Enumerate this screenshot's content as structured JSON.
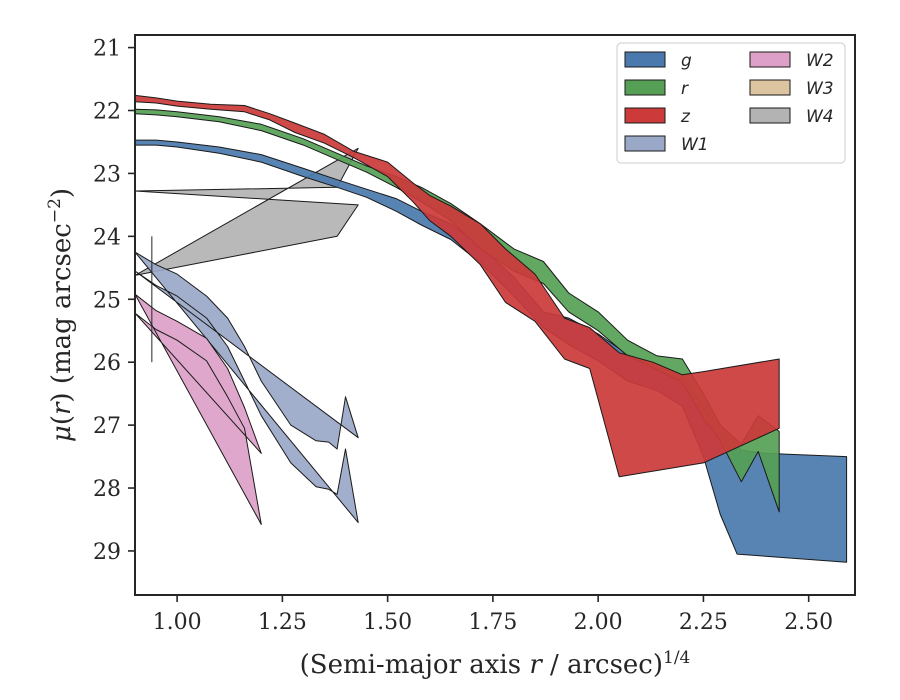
{
  "chart_data": {
    "type": "area",
    "xlabel_html": "(Semi-major axis <tspan font-style='italic'>r</tspan> / arcsec)<tspan dy='-10' font-size='17'>1/4</tspan>",
    "ylabel_html": "<tspan font-style='italic'>μ</tspan>(<tspan font-style='italic'>r</tspan>) (mag arcsec<tspan dy='-10' font-size='17'>−2</tspan><tspan dy='10'>)</tspan>",
    "xlim": [
      0.9,
      2.61
    ],
    "ylim": [
      29.7,
      20.8
    ],
    "y_inverted": true,
    "xticks": [
      1.0,
      1.25,
      1.5,
      1.75,
      2.0,
      2.25,
      2.5
    ],
    "xtick_labels": [
      "1.00",
      "1.25",
      "1.50",
      "1.75",
      "2.00",
      "2.25",
      "2.50"
    ],
    "yticks": [
      21,
      22,
      23,
      24,
      25,
      26,
      27,
      28,
      29
    ],
    "ytick_labels": [
      "21",
      "22",
      "23",
      "24",
      "25",
      "26",
      "27",
      "28",
      "29"
    ],
    "grid": false,
    "legend_position": "top-right",
    "legend_columns": 2,
    "series": [
      {
        "name": "W4",
        "color": "#b3b3b3",
        "upper": [
          [
            0.9,
            23.28
          ],
          [
            1.38,
            23.22
          ],
          [
            1.43,
            22.6
          ]
        ],
        "lower": [
          [
            0.9,
            24.62
          ],
          [
            1.38,
            24.0
          ],
          [
            1.43,
            23.5
          ]
        ]
      },
      {
        "name": "W1",
        "color": "#9aa8c8",
        "upper": [
          [
            0.9,
            24.25
          ],
          [
            0.95,
            24.45
          ],
          [
            1.0,
            24.6
          ],
          [
            1.07,
            24.95
          ],
          [
            1.12,
            25.3
          ],
          [
            1.16,
            25.75
          ],
          [
            1.2,
            26.3
          ],
          [
            1.27,
            27.0
          ],
          [
            1.33,
            27.25
          ],
          [
            1.36,
            27.27
          ],
          [
            1.38,
            27.38
          ],
          [
            1.4,
            26.55
          ],
          [
            1.43,
            27.2
          ]
        ],
        "lower": [
          [
            0.9,
            24.55
          ],
          [
            0.95,
            24.78
          ],
          [
            1.0,
            24.95
          ],
          [
            1.07,
            25.3
          ],
          [
            1.12,
            25.75
          ],
          [
            1.16,
            26.3
          ],
          [
            1.2,
            26.85
          ],
          [
            1.27,
            27.6
          ],
          [
            1.33,
            27.98
          ],
          [
            1.36,
            28.02
          ],
          [
            1.38,
            28.1
          ],
          [
            1.4,
            27.38
          ],
          [
            1.43,
            28.55
          ]
        ]
      },
      {
        "name": "W2",
        "color": "#dda0c8",
        "upper": [
          [
            0.9,
            24.92
          ],
          [
            0.95,
            25.18
          ],
          [
            1.0,
            25.35
          ],
          [
            1.07,
            25.62
          ],
          [
            1.12,
            26.1
          ],
          [
            1.16,
            26.72
          ],
          [
            1.2,
            27.45
          ]
        ],
        "lower": [
          [
            0.9,
            25.22
          ],
          [
            0.95,
            25.48
          ],
          [
            1.0,
            25.65
          ],
          [
            1.07,
            25.98
          ],
          [
            1.12,
            26.55
          ],
          [
            1.16,
            27.05
          ],
          [
            1.2,
            28.58
          ]
        ]
      },
      {
        "name": "g",
        "color": "#4a7aad",
        "upper": [
          [
            0.9,
            22.47
          ],
          [
            0.95,
            22.47
          ],
          [
            1.0,
            22.5
          ],
          [
            1.1,
            22.58
          ],
          [
            1.2,
            22.7
          ],
          [
            1.3,
            22.92
          ],
          [
            1.38,
            23.1
          ],
          [
            1.45,
            23.25
          ],
          [
            1.52,
            23.4
          ],
          [
            1.58,
            23.6
          ],
          [
            1.65,
            23.8
          ],
          [
            1.72,
            24.15
          ],
          [
            1.8,
            24.65
          ],
          [
            1.87,
            25.2
          ],
          [
            1.93,
            25.3
          ],
          [
            2.0,
            25.55
          ],
          [
            2.07,
            25.88
          ],
          [
            2.14,
            26.05
          ],
          [
            2.2,
            26.2
          ],
          [
            2.25,
            26.65
          ],
          [
            2.29,
            27.05
          ],
          [
            2.34,
            27.4
          ],
          [
            2.4,
            27.45
          ],
          [
            2.59,
            27.5
          ]
        ],
        "lower": [
          [
            2.59,
            29.18
          ],
          [
            2.33,
            29.05
          ],
          [
            2.29,
            28.42
          ],
          [
            2.25,
            27.5
          ],
          [
            2.2,
            26.7
          ],
          [
            2.14,
            26.45
          ],
          [
            2.07,
            26.3
          ],
          [
            2.0,
            25.98
          ],
          [
            1.93,
            25.72
          ],
          [
            1.87,
            25.45
          ],
          [
            1.8,
            24.95
          ],
          [
            1.72,
            24.42
          ],
          [
            1.65,
            24.05
          ],
          [
            1.58,
            23.82
          ],
          [
            1.52,
            23.6
          ],
          [
            1.45,
            23.38
          ],
          [
            1.38,
            23.22
          ],
          [
            1.3,
            23.05
          ],
          [
            1.2,
            22.82
          ],
          [
            1.1,
            22.68
          ],
          [
            1.0,
            22.58
          ],
          [
            0.95,
            22.55
          ],
          [
            0.9,
            22.55
          ]
        ]
      },
      {
        "name": "r",
        "color": "#55a055",
        "upper": [
          [
            0.9,
            21.98
          ],
          [
            0.95,
            21.99
          ],
          [
            1.0,
            22.02
          ],
          [
            1.1,
            22.1
          ],
          [
            1.2,
            22.22
          ],
          [
            1.3,
            22.45
          ],
          [
            1.38,
            22.68
          ],
          [
            1.45,
            22.88
          ],
          [
            1.52,
            23.05
          ],
          [
            1.58,
            23.22
          ],
          [
            1.65,
            23.48
          ],
          [
            1.72,
            23.8
          ],
          [
            1.8,
            24.2
          ],
          [
            1.87,
            24.4
          ],
          [
            1.93,
            24.9
          ],
          [
            2.0,
            25.2
          ],
          [
            2.07,
            25.65
          ],
          [
            2.14,
            25.9
          ],
          [
            2.2,
            25.95
          ],
          [
            2.25,
            26.5
          ],
          [
            2.29,
            27.0
          ],
          [
            2.34,
            27.3
          ],
          [
            2.38,
            26.85
          ],
          [
            2.43,
            27.1
          ]
        ],
        "lower": [
          [
            2.43,
            28.38
          ],
          [
            2.38,
            27.42
          ],
          [
            2.34,
            27.9
          ],
          [
            2.29,
            27.25
          ],
          [
            2.25,
            26.9
          ],
          [
            2.2,
            26.32
          ],
          [
            2.14,
            26.12
          ],
          [
            2.07,
            25.9
          ],
          [
            2.0,
            25.5
          ],
          [
            1.93,
            25.2
          ],
          [
            1.87,
            24.75
          ],
          [
            1.8,
            24.55
          ],
          [
            1.72,
            24.2
          ],
          [
            1.65,
            23.75
          ],
          [
            1.58,
            23.45
          ],
          [
            1.52,
            23.22
          ],
          [
            1.45,
            22.98
          ],
          [
            1.38,
            22.78
          ],
          [
            1.3,
            22.55
          ],
          [
            1.2,
            22.32
          ],
          [
            1.1,
            22.18
          ],
          [
            1.0,
            22.1
          ],
          [
            0.95,
            22.07
          ],
          [
            0.9,
            22.05
          ]
        ]
      },
      {
        "name": "z",
        "color": "#cc3a3a",
        "upper": [
          [
            0.9,
            21.76
          ],
          [
            0.95,
            21.8
          ],
          [
            1.0,
            21.85
          ],
          [
            1.08,
            21.9
          ],
          [
            1.16,
            21.92
          ],
          [
            1.22,
            22.05
          ],
          [
            1.28,
            22.2
          ],
          [
            1.35,
            22.38
          ],
          [
            1.42,
            22.65
          ],
          [
            1.5,
            22.82
          ],
          [
            1.56,
            23.15
          ],
          [
            1.6,
            23.35
          ],
          [
            1.65,
            23.52
          ],
          [
            1.72,
            23.8
          ],
          [
            1.78,
            24.2
          ],
          [
            1.85,
            24.6
          ],
          [
            1.92,
            25.3
          ],
          [
            1.98,
            25.45
          ],
          [
            2.05,
            25.85
          ],
          [
            2.13,
            26.0
          ],
          [
            2.2,
            26.2
          ],
          [
            2.25,
            26.15
          ],
          [
            2.43,
            25.95
          ]
        ],
        "lower": [
          [
            2.43,
            27.05
          ],
          [
            2.25,
            27.6
          ],
          [
            2.05,
            27.82
          ],
          [
            1.98,
            26.1
          ],
          [
            1.92,
            25.95
          ],
          [
            1.85,
            25.35
          ],
          [
            1.78,
            25.05
          ],
          [
            1.72,
            24.45
          ],
          [
            1.65,
            24.0
          ],
          [
            1.6,
            23.75
          ],
          [
            1.56,
            23.45
          ],
          [
            1.5,
            23.05
          ],
          [
            1.42,
            22.75
          ],
          [
            1.35,
            22.52
          ],
          [
            1.28,
            22.35
          ],
          [
            1.22,
            22.15
          ],
          [
            1.16,
            22.02
          ],
          [
            1.08,
            21.98
          ],
          [
            1.0,
            21.93
          ],
          [
            0.95,
            21.88
          ],
          [
            0.9,
            21.86
          ]
        ]
      }
    ],
    "errorbar": {
      "x": 0.94,
      "y_low": 24.0,
      "y_high": 26.0,
      "color": "#262626"
    },
    "legend": [
      {
        "name": "g",
        "color": "#4a7aad"
      },
      {
        "name": "r",
        "color": "#55a055"
      },
      {
        "name": "z",
        "color": "#cc3a3a"
      },
      {
        "name": "W1",
        "color": "#9aa8c8"
      },
      {
        "name": "W2",
        "color": "#dda0c8"
      },
      {
        "name": "W3",
        "color": "#dcc4a0"
      },
      {
        "name": "W4",
        "color": "#b3b3b3"
      }
    ]
  }
}
